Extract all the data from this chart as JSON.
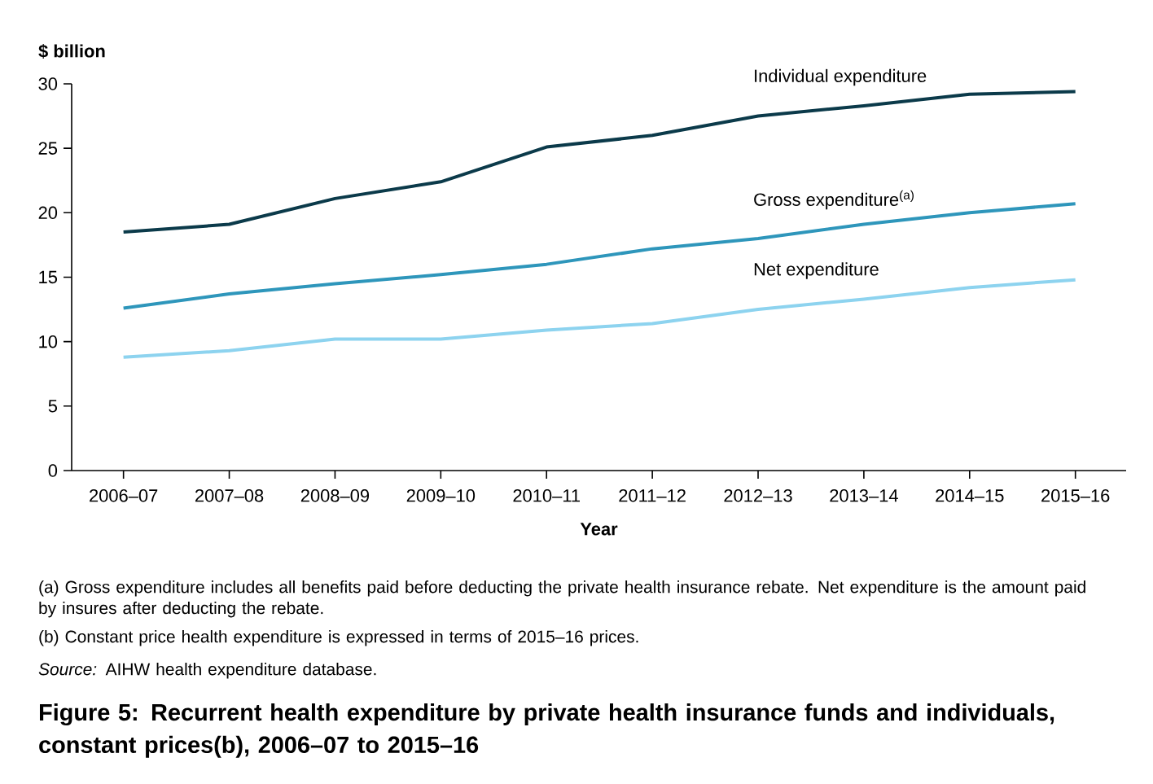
{
  "chart_data": {
    "type": "line",
    "title": "Figure 5: Recurrent health expenditure by private health insurance funds and individuals, constant prices(b), 2006–07 to 2015–16",
    "ylabel": "$ billion",
    "xlabel": "Year",
    "categories": [
      "2006–07",
      "2007–08",
      "2008–09",
      "2009–10",
      "2010–11",
      "2011–12",
      "2012–13",
      "2013–14",
      "2014–15",
      "2015–16"
    ],
    "series": [
      {
        "name": "Individual expenditure",
        "color": "#0b3a4a",
        "values": [
          18.5,
          19.1,
          21.1,
          22.4,
          25.1,
          26.0,
          27.5,
          28.3,
          29.2,
          29.4
        ]
      },
      {
        "name": "Gross expenditure$^{(a)}$",
        "color": "#2e96bb",
        "values": [
          12.6,
          13.7,
          14.5,
          15.2,
          16.0,
          17.2,
          18.0,
          19.1,
          20.0,
          20.7
        ]
      },
      {
        "name": "Net expenditure",
        "color": "#8dd3ef",
        "values": [
          8.8,
          9.3,
          10.2,
          10.2,
          10.9,
          11.4,
          12.5,
          13.3,
          14.2,
          14.8
        ]
      }
    ],
    "ylim": [
      0,
      30
    ],
    "yticks": [
      0,
      5,
      10,
      15,
      20,
      25,
      30
    ],
    "grid": false,
    "marker": "none",
    "line_style": "solid",
    "annotations": [
      "(a) Gross expenditure includes all benefits paid before deducting the private health insurance rebate. Net expenditure is the amount paid by insures after deducting the rebate.",
      "(b) Constant price health expenditure is expressed in terms of 2015–16 prices.",
      "*Source:* AIHW health expenditure database."
    ]
  }
}
